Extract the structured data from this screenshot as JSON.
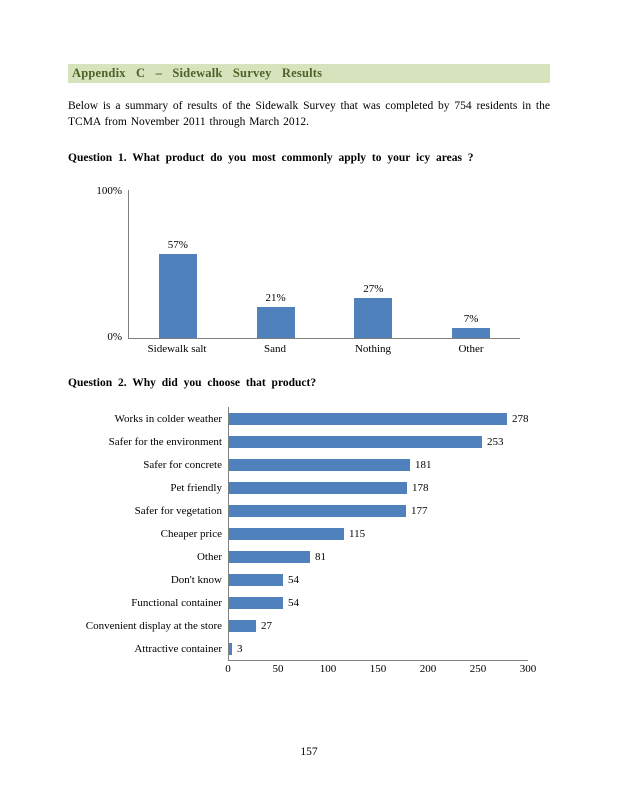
{
  "page": {
    "header": "Appendix C – Sidewalk Survey Results",
    "intro": "Below is a summary of results of the Sidewalk Survey that was completed by 754 residents in the TCMA from November 2011 through March 2012.",
    "question1": "Question 1. What product do you most commonly apply to your icy areas ?",
    "question2": "Question 2. Why did you choose that product?",
    "page_number": "157"
  },
  "colors": {
    "bar": "#4f81bd",
    "header_bg": "#d6e3bc",
    "header_text": "#4f6228"
  },
  "chart_data": [
    {
      "type": "bar",
      "title": "",
      "categories": [
        "Sidewalk salt",
        "Sand",
        "Nothing",
        "Other"
      ],
      "values": [
        57,
        21,
        27,
        7
      ],
      "value_labels": [
        "57%",
        "21%",
        "27%",
        "7%"
      ],
      "xlabel": "",
      "ylabel": "",
      "ylim": [
        0,
        100
      ],
      "yticks": [
        "0%",
        "100%"
      ],
      "grid": false,
      "legend": false
    },
    {
      "type": "bar-horizontal",
      "title": "",
      "categories": [
        "Works in colder weather",
        "Safer for the environment",
        "Safer for concrete",
        "Pet friendly",
        "Safer for vegetation",
        "Cheaper price",
        "Other",
        "Don't know",
        "Functional container",
        "Convenient display at the store",
        "Attractive container"
      ],
      "values": [
        278,
        253,
        181,
        178,
        177,
        115,
        81,
        54,
        54,
        27,
        3
      ],
      "xlabel": "",
      "ylabel": "",
      "xlim": [
        0,
        300
      ],
      "xticks": [
        0,
        50,
        100,
        150,
        200,
        250,
        300
      ],
      "grid": false,
      "legend": false
    }
  ]
}
